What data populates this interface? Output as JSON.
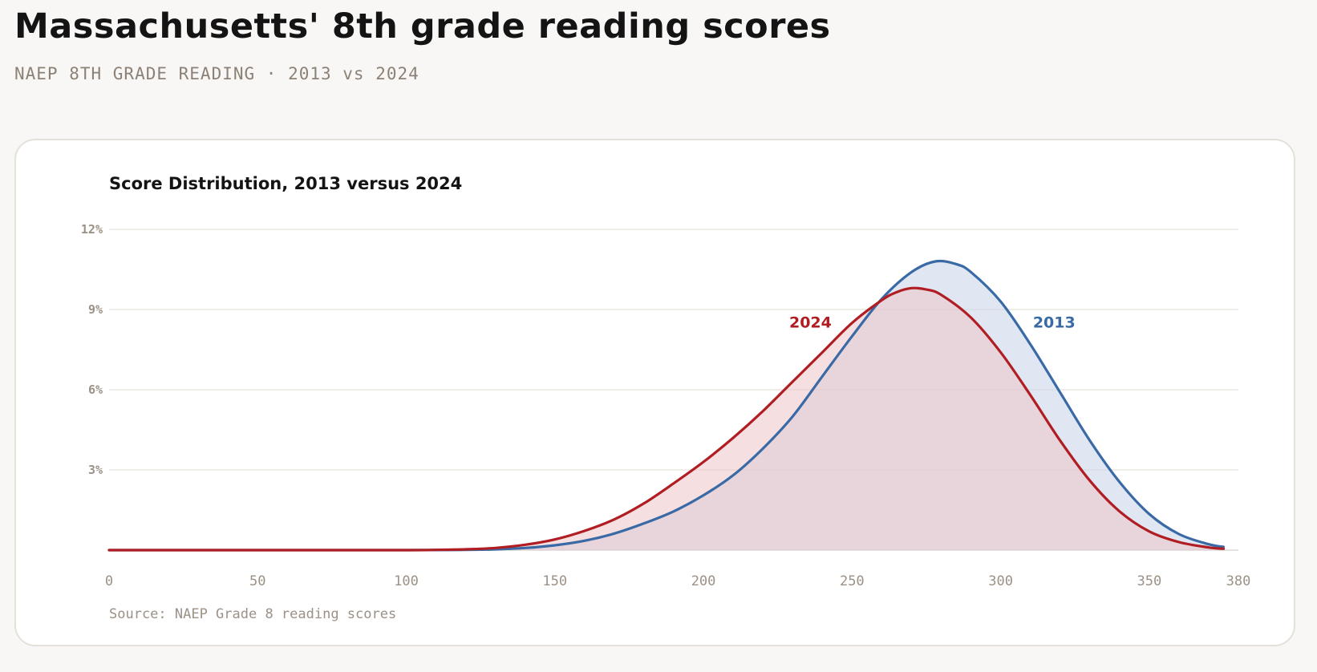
{
  "header": {
    "title": "Massachusetts' 8th grade reading scores",
    "subtitle": "NAEP 8TH GRADE READING · 2013 vs 2024"
  },
  "chart_data": {
    "type": "area",
    "title": "Score Distribution, 2013 versus 2024",
    "xlabel": "",
    "ylabel": "",
    "xlim": [
      0,
      380
    ],
    "ylim": [
      0,
      12
    ],
    "x_ticks": [
      "0",
      "50",
      "100",
      "150",
      "200",
      "250",
      "300",
      "350",
      "380"
    ],
    "y_ticks": [
      "3%",
      "6%",
      "9%",
      "12%"
    ],
    "grid": true,
    "legend": "inline labels",
    "source": "Source: NAEP Grade 8 reading scores",
    "series": [
      {
        "name": "2013",
        "color": "#3a6aa5",
        "fill": "#c6d3e8",
        "x": [
          0,
          50,
          100,
          120,
          130,
          140,
          150,
          160,
          170,
          180,
          190,
          200,
          210,
          220,
          230,
          240,
          250,
          260,
          270,
          278,
          285,
          290,
          300,
          310,
          320,
          330,
          340,
          350,
          360,
          370,
          375
        ],
        "values": [
          0,
          0,
          0,
          0.01,
          0.03,
          0.08,
          0.18,
          0.35,
          0.62,
          1.0,
          1.45,
          2.05,
          2.8,
          3.8,
          5.0,
          6.5,
          8.0,
          9.4,
          10.4,
          10.8,
          10.7,
          10.4,
          9.3,
          7.7,
          5.9,
          4.1,
          2.55,
          1.35,
          0.6,
          0.22,
          0.12
        ]
      },
      {
        "name": "2024",
        "color": "#b01e23",
        "fill": "#efc4c8",
        "x": [
          0,
          50,
          100,
          110,
          120,
          130,
          140,
          150,
          160,
          170,
          180,
          190,
          200,
          210,
          220,
          230,
          240,
          250,
          260,
          265,
          270,
          275,
          280,
          290,
          300,
          310,
          320,
          330,
          340,
          350,
          360,
          370,
          375
        ],
        "values": [
          0,
          0,
          0,
          0.01,
          0.03,
          0.08,
          0.2,
          0.4,
          0.72,
          1.15,
          1.75,
          2.5,
          3.3,
          4.2,
          5.2,
          6.3,
          7.4,
          8.5,
          9.35,
          9.65,
          9.8,
          9.75,
          9.55,
          8.7,
          7.4,
          5.8,
          4.1,
          2.6,
          1.45,
          0.7,
          0.3,
          0.1,
          0.05
        ]
      }
    ]
  }
}
